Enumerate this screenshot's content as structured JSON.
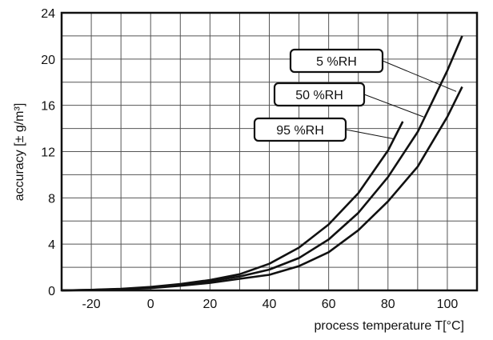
{
  "chart_data": {
    "type": "line",
    "title": "",
    "xlabel": "process temperature T[°C]",
    "ylabel": "accuracy  [± g/m³]",
    "xlim": [
      -30,
      110
    ],
    "ylim": [
      0,
      24
    ],
    "xticks": [
      -20,
      0,
      20,
      40,
      60,
      80,
      100
    ],
    "yticks": [
      0,
      4,
      8,
      12,
      16,
      20,
      24
    ],
    "grid": true,
    "grid_x_step": 10,
    "grid_y_step": 2,
    "line_color": "#111111",
    "series": [
      {
        "name": "5 %RH",
        "x": [
          -30,
          -20,
          -10,
          0,
          10,
          20,
          30,
          40,
          50,
          60,
          70,
          80,
          90,
          100,
          105
        ],
        "y": [
          0,
          0.03,
          0.1,
          0.2,
          0.4,
          0.65,
          1.0,
          1.35,
          2.1,
          3.3,
          5.2,
          7.7,
          10.7,
          15.0,
          17.6
        ]
      },
      {
        "name": "50 %RH",
        "x": [
          -30,
          -20,
          -10,
          0,
          10,
          20,
          30,
          40,
          50,
          60,
          70,
          80,
          90,
          100,
          105
        ],
        "y": [
          0,
          0.04,
          0.12,
          0.25,
          0.5,
          0.8,
          1.2,
          1.8,
          2.8,
          4.4,
          6.7,
          9.8,
          13.7,
          19.0,
          22.0
        ]
      },
      {
        "name": "95 %RH",
        "x": [
          -30,
          -20,
          -10,
          0,
          10,
          20,
          30,
          40,
          50,
          60,
          70,
          80,
          85
        ],
        "y": [
          0,
          0.05,
          0.14,
          0.3,
          0.55,
          0.9,
          1.4,
          2.3,
          3.7,
          5.7,
          8.4,
          12.1,
          14.6
        ]
      }
    ],
    "annotations": [
      {
        "text": "5 %RH",
        "series": "5 %RH",
        "points_to": [
          103,
          17.2
        ]
      },
      {
        "text": "50 %RH",
        "series": "50 %RH",
        "points_to": [
          92,
          15.0
        ]
      },
      {
        "text": "95 %RH",
        "series": "95 %RH",
        "points_to": [
          82,
          13.1
        ]
      }
    ]
  }
}
